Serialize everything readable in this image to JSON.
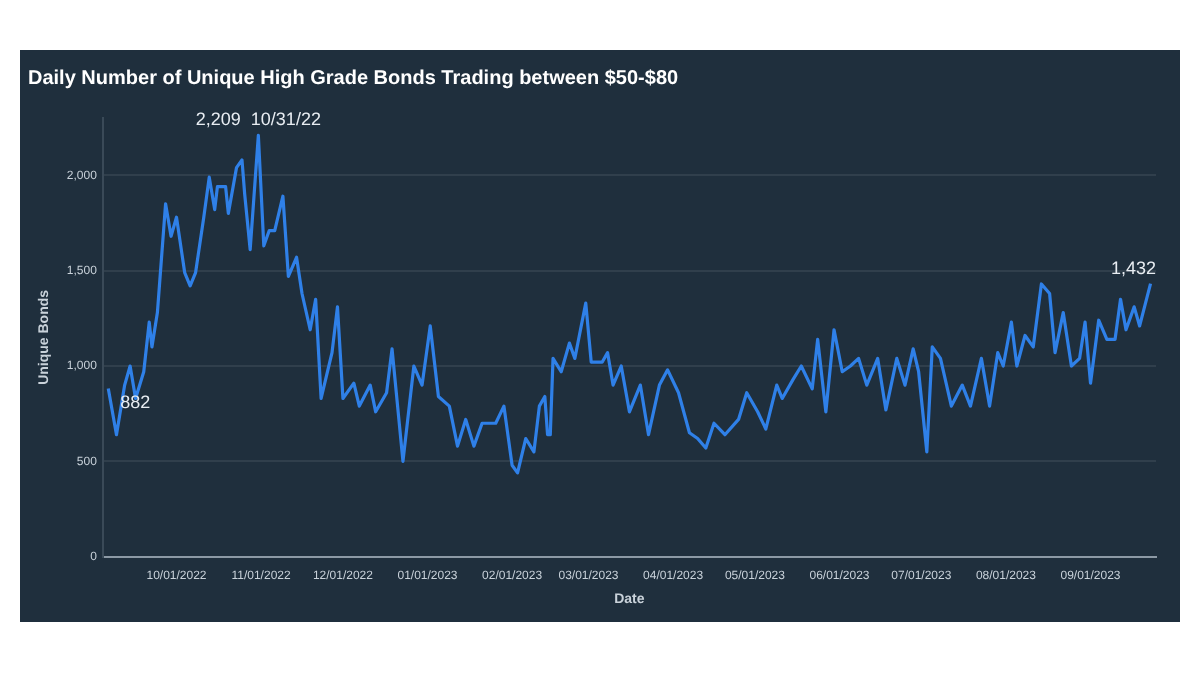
{
  "chart_data": {
    "type": "line",
    "title": "Daily Number of Unique High Grade Bonds Trading between $50-$80",
    "xlabel": "Date",
    "ylabel": "Unique Bonds",
    "x": [
      "2022-09-06",
      "2022-09-09",
      "2022-09-12",
      "2022-09-14",
      "2022-09-16",
      "2022-09-19",
      "2022-09-21",
      "2022-09-22",
      "2022-09-24",
      "2022-09-27",
      "2022-09-29",
      "2022-10-01",
      "2022-10-04",
      "2022-10-06",
      "2022-10-08",
      "2022-10-11",
      "2022-10-13",
      "2022-10-15",
      "2022-10-16",
      "2022-10-19",
      "2022-10-20",
      "2022-10-23",
      "2022-10-25",
      "2022-10-26",
      "2022-10-28",
      "2022-10-31",
      "2022-11-02",
      "2022-11-04",
      "2022-11-06",
      "2022-11-09",
      "2022-11-11",
      "2022-11-14",
      "2022-11-16",
      "2022-11-19",
      "2022-11-21",
      "2022-11-23",
      "2022-11-27",
      "2022-11-29",
      "2022-12-01",
      "2022-12-05",
      "2022-12-07",
      "2022-12-11",
      "2022-12-13",
      "2022-12-17",
      "2022-12-19",
      "2022-12-23",
      "2022-12-27",
      "2022-12-30",
      "2023-01-02",
      "2023-01-05",
      "2023-01-09",
      "2023-01-12",
      "2023-01-15",
      "2023-01-18",
      "2023-01-21",
      "2023-01-26",
      "2023-01-29",
      "2023-02-01",
      "2023-02-03",
      "2023-02-06",
      "2023-02-09",
      "2023-02-11",
      "2023-02-13",
      "2023-02-14",
      "2023-02-15",
      "2023-02-16",
      "2023-02-19",
      "2023-02-22",
      "2023-02-24",
      "2023-02-28",
      "2023-03-02",
      "2023-03-06",
      "2023-03-08",
      "2023-03-10",
      "2023-03-13",
      "2023-03-16",
      "2023-03-20",
      "2023-03-23",
      "2023-03-27",
      "2023-03-30",
      "2023-04-03",
      "2023-04-07",
      "2023-04-10",
      "2023-04-13",
      "2023-04-16",
      "2023-04-20",
      "2023-04-25",
      "2023-04-28",
      "2023-05-02",
      "2023-05-05",
      "2023-05-09",
      "2023-05-11",
      "2023-05-15",
      "2023-05-18",
      "2023-05-22",
      "2023-05-24",
      "2023-05-27",
      "2023-05-30",
      "2023-06-02",
      "2023-06-05",
      "2023-06-08",
      "2023-06-11",
      "2023-06-15",
      "2023-06-18",
      "2023-06-22",
      "2023-06-25",
      "2023-06-28",
      "2023-06-30",
      "2023-07-03",
      "2023-07-05",
      "2023-07-08",
      "2023-07-12",
      "2023-07-16",
      "2023-07-19",
      "2023-07-23",
      "2023-07-26",
      "2023-07-29",
      "2023-07-31",
      "2023-08-03",
      "2023-08-05",
      "2023-08-08",
      "2023-08-11",
      "2023-08-14",
      "2023-08-17",
      "2023-08-19",
      "2023-08-22",
      "2023-08-25",
      "2023-08-28",
      "2023-08-30",
      "2023-09-01",
      "2023-09-04",
      "2023-09-07",
      "2023-09-10",
      "2023-09-12",
      "2023-09-14",
      "2023-09-17",
      "2023-09-19",
      "2023-09-23"
    ],
    "series": [
      {
        "color": "#2f80e8",
        "values": [
          882,
          640,
          900,
          1000,
          830,
          970,
          1230,
          1100,
          1280,
          1850,
          1680,
          1780,
          1490,
          1420,
          1490,
          1780,
          1990,
          1820,
          1940,
          1940,
          1800,
          2040,
          2080,
          1900,
          1610,
          2209,
          1630,
          1710,
          1710,
          1890,
          1470,
          1570,
          1380,
          1190,
          1350,
          830,
          1070,
          1310,
          830,
          910,
          790,
          900,
          760,
          860,
          1090,
          500,
          1000,
          900,
          1210,
          840,
          790,
          580,
          720,
          580,
          700,
          700,
          790,
          480,
          440,
          620,
          550,
          790,
          840,
          640,
          640,
          1040,
          970,
          1120,
          1040,
          1330,
          1020,
          1020,
          1070,
          900,
          1000,
          760,
          900,
          640,
          900,
          980,
          860,
          650,
          620,
          570,
          700,
          640,
          720,
          860,
          760,
          670,
          900,
          830,
          930,
          1000,
          880,
          1140,
          760,
          1190,
          970,
          1000,
          1040,
          900,
          1040,
          770,
          1040,
          900,
          1090,
          970,
          550,
          1100,
          1040,
          790,
          900,
          790,
          1040,
          790,
          1070,
          1000,
          1230,
          1000,
          1160,
          1100,
          1430,
          1380,
          1070,
          1280,
          1000,
          1040,
          1230,
          910,
          1240,
          1140,
          1140,
          1350,
          1190,
          1310,
          1210,
          1432
        ]
      }
    ],
    "xlim": [
      "2022-09-04",
      "2023-09-25"
    ],
    "xticks": [
      {
        "value": "2022-10-01",
        "label": "10/01/2022"
      },
      {
        "value": "2022-11-01",
        "label": "11/01/2022"
      },
      {
        "value": "2022-12-01",
        "label": "12/01/2022"
      },
      {
        "value": "2023-01-01",
        "label": "01/01/2023"
      },
      {
        "value": "2023-02-01",
        "label": "02/01/2023"
      },
      {
        "value": "2023-03-01",
        "label": "03/01/2023"
      },
      {
        "value": "2023-04-01",
        "label": "04/01/2023"
      },
      {
        "value": "2023-05-01",
        "label": "05/01/2023"
      },
      {
        "value": "2023-06-01",
        "label": "06/01/2023"
      },
      {
        "value": "2023-07-01",
        "label": "07/01/2023"
      },
      {
        "value": "2023-08-01",
        "label": "08/01/2023"
      },
      {
        "value": "2023-09-01",
        "label": "09/01/2023"
      }
    ],
    "ylim": [
      0,
      2300
    ],
    "yticks": [
      0,
      500,
      {
        "value": 1000,
        "label": "1,000"
      },
      {
        "value": 1500,
        "label": "1,500"
      },
      {
        "value": 2000,
        "label": "2,000"
      }
    ],
    "grid": "y",
    "marker": "none",
    "line_style": "solid",
    "annotations": [
      {
        "text": "882",
        "x": "2022-09-06",
        "y": 882
      },
      {
        "text": "2,209  10/31/22",
        "x": "2022-10-31",
        "y": 2209
      },
      {
        "text": "1,432",
        "x": "2023-09-23",
        "y": 1432
      }
    ]
  }
}
